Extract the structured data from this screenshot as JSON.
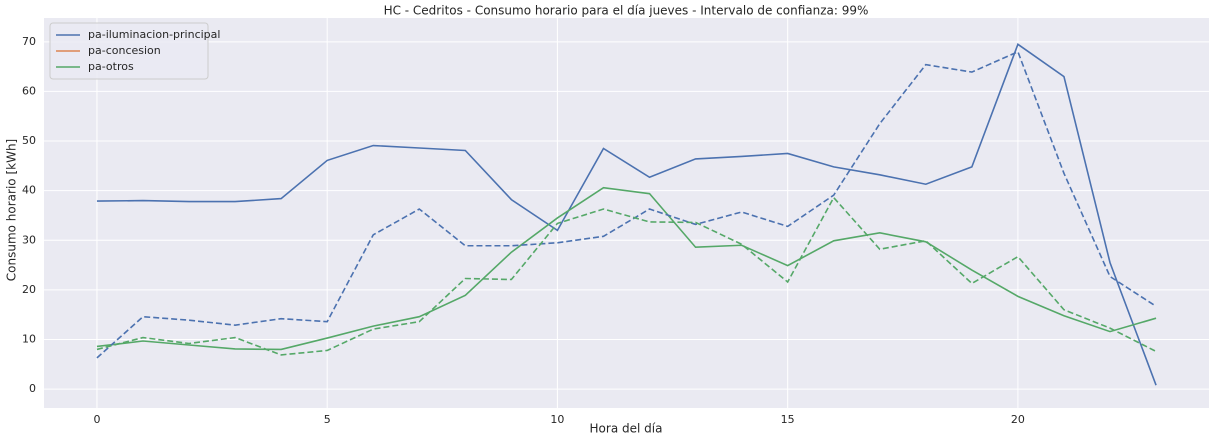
{
  "chart_data": {
    "type": "line",
    "title": "HC - Cedritos - Consumo horario para el día jueves - Intervalo de confianza: 99%",
    "xlabel": "Hora del día",
    "ylabel": "Consumo horario [kWh]",
    "x": [
      0,
      1,
      2,
      3,
      4,
      5,
      6,
      7,
      8,
      9,
      10,
      11,
      12,
      13,
      14,
      15,
      16,
      17,
      18,
      19,
      20,
      21,
      22,
      23
    ],
    "series": [
      {
        "name": "pa-iluminacion-principal",
        "color": "#4c72b0",
        "style": "solid",
        "values": [
          37.9,
          38,
          37.8,
          37.8,
          38.4,
          46.1,
          49.1,
          48.6,
          48.1,
          38.2,
          32,
          48.5,
          42.7,
          46.4,
          46.9,
          47.5,
          44.8,
          43.2,
          41.3,
          44.8,
          69.5,
          63,
          25.5,
          0.8
        ]
      },
      {
        "name": "pa-concesion",
        "color": "#dd8452",
        "style": "solid",
        "values": [
          null,
          null,
          null,
          null,
          null,
          null,
          null,
          null,
          null,
          null,
          null,
          null,
          null,
          null,
          null,
          null,
          null,
          null,
          null,
          null,
          null,
          null,
          null,
          null
        ]
      },
      {
        "name": "pa-otros",
        "color": "#55a868",
        "style": "solid",
        "values": [
          8.6,
          9.7,
          8.9,
          8.1,
          8,
          10.3,
          12.7,
          14.6,
          18.9,
          27.6,
          34.5,
          40.6,
          39.4,
          28.6,
          29,
          24.9,
          29.9,
          31.5,
          29.7,
          24,
          18.7,
          14.8,
          11.6,
          14.3
        ]
      },
      {
        "color": "#4c72b0",
        "style": "dashed",
        "values": [
          6.3,
          14.6,
          13.9,
          12.9,
          14.2,
          13.6,
          31.1,
          36.3,
          28.9,
          28.9,
          29.5,
          30.8,
          36.3,
          33.2,
          35.7,
          32.8,
          39.1,
          53.5,
          65.4,
          63.9,
          68,
          43.5,
          22.7,
          16.7
        ]
      },
      {
        "color": "#55a868",
        "style": "dashed",
        "values": [
          8,
          10.4,
          9.2,
          10.4,
          6.9,
          7.8,
          12.1,
          13.6,
          22.3,
          22.1,
          33.4,
          36.3,
          33.7,
          33.6,
          29.2,
          21.6,
          38.6,
          28.2,
          29.9,
          21.3,
          26.7,
          16,
          12.3,
          7.6
        ]
      }
    ],
    "xlim": [
      -1.15,
      24.15
    ],
    "xticks": [
      0,
      5,
      10,
      15,
      20
    ],
    "ylim": [
      -3.8,
      74.8
    ],
    "yticks": [
      0,
      10,
      20,
      30,
      40,
      50,
      60,
      70
    ],
    "grid": true,
    "legend": "upper left",
    "background": "#eaeaf2"
  }
}
